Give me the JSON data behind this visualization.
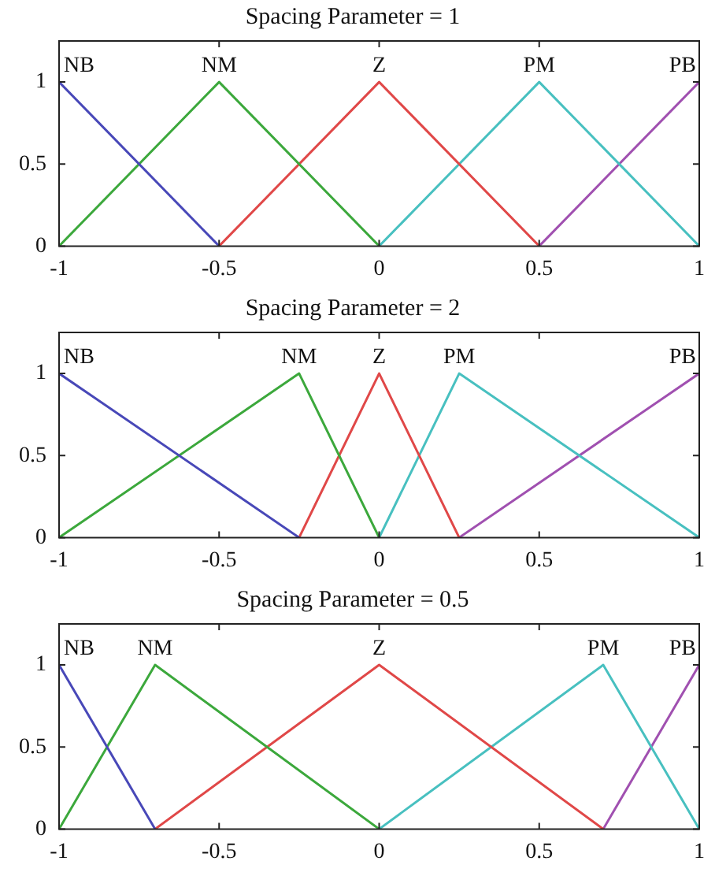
{
  "chart_data": [
    {
      "type": "line",
      "title": "Spacing Parameter = 1",
      "xlim": [
        -1,
        1
      ],
      "xticks": [
        -1,
        -0.5,
        0,
        0.5,
        1
      ],
      "ylim": [
        0,
        1.25
      ],
      "yticks": [
        0,
        0.5,
        1
      ],
      "grid": false,
      "legend": false,
      "marker": "none",
      "line_style": "solid",
      "series": [
        {
          "name": "NB",
          "color": "#4848b8",
          "x": [
            -1,
            -0.5
          ],
          "values": [
            1,
            0
          ]
        },
        {
          "name": "NM",
          "color": "#3ca83c",
          "x": [
            -1,
            -0.5,
            0
          ],
          "values": [
            0,
            1,
            0
          ]
        },
        {
          "name": "Z",
          "color": "#e04848",
          "x": [
            -0.5,
            0,
            0.5
          ],
          "values": [
            0,
            1,
            0
          ]
        },
        {
          "name": "PM",
          "color": "#48c0c0",
          "x": [
            0,
            0.5,
            1
          ],
          "values": [
            0,
            1,
            0
          ]
        },
        {
          "name": "PB",
          "color": "#a050b0",
          "x": [
            0.5,
            1
          ],
          "values": [
            0,
            1
          ]
        }
      ]
    },
    {
      "type": "line",
      "title": "Spacing Parameter = 2",
      "xlim": [
        -1,
        1
      ],
      "xticks": [
        -1,
        -0.5,
        0,
        0.5,
        1
      ],
      "ylim": [
        0,
        1.25
      ],
      "yticks": [
        0,
        0.5,
        1
      ],
      "grid": false,
      "legend": false,
      "marker": "none",
      "line_style": "solid",
      "series": [
        {
          "name": "NB",
          "color": "#4848b8",
          "x": [
            -1,
            -0.25
          ],
          "values": [
            1,
            0
          ]
        },
        {
          "name": "NM",
          "color": "#3ca83c",
          "x": [
            -1,
            -0.25,
            0
          ],
          "values": [
            0,
            1,
            0
          ]
        },
        {
          "name": "Z",
          "color": "#e04848",
          "x": [
            -0.25,
            0,
            0.25
          ],
          "values": [
            0,
            1,
            0
          ]
        },
        {
          "name": "PM",
          "color": "#48c0c0",
          "x": [
            0,
            0.25,
            1
          ],
          "values": [
            0,
            1,
            0
          ]
        },
        {
          "name": "PB",
          "color": "#a050b0",
          "x": [
            0.25,
            1
          ],
          "values": [
            0,
            1
          ]
        }
      ]
    },
    {
      "type": "line",
      "title": "Spacing Parameter = 0.5",
      "xlim": [
        -1,
        1
      ],
      "xticks": [
        -1,
        -0.5,
        0,
        0.5,
        1
      ],
      "ylim": [
        0,
        1.25
      ],
      "yticks": [
        0,
        0.5,
        1
      ],
      "grid": false,
      "legend": false,
      "marker": "none",
      "line_style": "solid",
      "series": [
        {
          "name": "NB",
          "color": "#4848b8",
          "x": [
            -1,
            -0.7
          ],
          "values": [
            1,
            0
          ]
        },
        {
          "name": "NM",
          "color": "#3ca83c",
          "x": [
            -1,
            -0.7,
            0
          ],
          "values": [
            0,
            1,
            0
          ]
        },
        {
          "name": "Z",
          "color": "#e04848",
          "x": [
            -0.7,
            0,
            0.7
          ],
          "values": [
            0,
            1,
            0
          ]
        },
        {
          "name": "PM",
          "color": "#48c0c0",
          "x": [
            0,
            0.7,
            1
          ],
          "values": [
            0,
            1,
            0
          ]
        },
        {
          "name": "PB",
          "color": "#a050b0",
          "x": [
            0.7,
            1
          ],
          "values": [
            0,
            1
          ]
        }
      ]
    }
  ]
}
